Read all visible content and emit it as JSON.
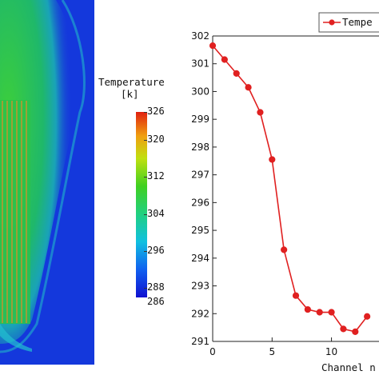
{
  "colorbar": {
    "title_line1": "Temperature",
    "title_line2": "[k]",
    "ticks": [
      "326",
      "320",
      "312",
      "304",
      "296",
      "288",
      "286"
    ],
    "min": 286,
    "max": 326
  },
  "chart_data": {
    "type": "line",
    "xlabel": "Channel n",
    "ylabel": "",
    "xlim": [
      0,
      14
    ],
    "ylim": [
      291,
      302
    ],
    "x_ticks": [
      0,
      5,
      10
    ],
    "y_ticks": [
      291,
      292,
      293,
      294,
      295,
      296,
      297,
      298,
      299,
      300,
      301,
      302
    ],
    "legend_position": "top-right",
    "series": [
      {
        "name": "Tempe",
        "color": "#e02020",
        "x": [
          0,
          1,
          2,
          3,
          4,
          5,
          6,
          7,
          8,
          9,
          10,
          11,
          12,
          13
        ],
        "y": [
          301.65,
          301.15,
          300.65,
          300.15,
          299.25,
          297.55,
          294.3,
          292.65,
          292.15,
          292.05,
          292.05,
          291.45,
          291.35,
          291.9
        ]
      }
    ]
  }
}
